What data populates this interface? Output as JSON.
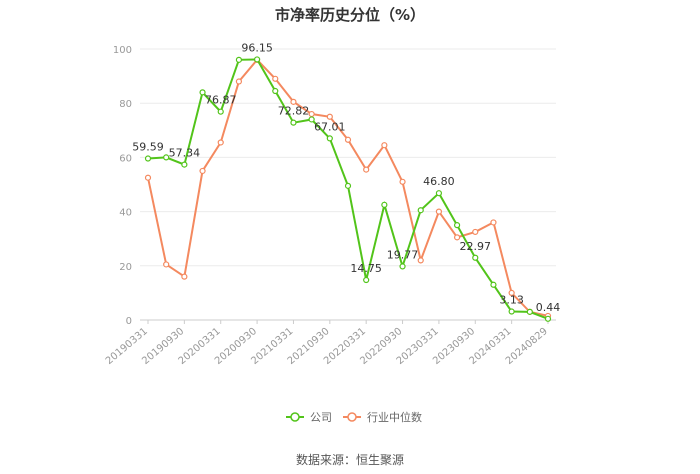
{
  "chart_data": {
    "type": "line",
    "title": "市净率历史分位（%）",
    "x": [
      "20190331",
      "20190630",
      "20190930",
      "20191231",
      "20200331",
      "20200630",
      "20200930",
      "20201231",
      "20210331",
      "20210630",
      "20210930",
      "20211231",
      "20220331",
      "20220630",
      "20220930",
      "20221231",
      "20230331",
      "20230630",
      "20230930",
      "20231231",
      "20240331",
      "20240630",
      "20240829"
    ],
    "x_tick_labels": [
      "20190331",
      "20190930",
      "20200331",
      "20200930",
      "20210331",
      "20210930",
      "20220331",
      "20220930",
      "20230331",
      "20230930",
      "20240331",
      "20240829"
    ],
    "y_ticks": [
      0,
      20,
      40,
      60,
      80,
      100
    ],
    "ylim": [
      0,
      100
    ],
    "grid": "horizontal",
    "series": [
      {
        "name": "公司",
        "color": "#52c41a",
        "values": [
          59.59,
          60.0,
          57.34,
          84.0,
          76.87,
          96.0,
          96.15,
          84.5,
          72.82,
          74.0,
          67.01,
          49.5,
          14.75,
          42.5,
          19.77,
          40.5,
          46.8,
          35.0,
          22.97,
          13.0,
          3.13,
          3.0,
          0.44
        ],
        "labels": {
          "0": "59.59",
          "2": "57.34",
          "4": "76.87",
          "6": "96.15",
          "8": "72.82",
          "10": "67.01",
          "12": "14.75",
          "14": "19.77",
          "16": "46.80",
          "18": "22.97",
          "20": "3.13",
          "22": "0.44"
        }
      },
      {
        "name": "行业中位数",
        "color": "#f4895f",
        "values": [
          52.5,
          20.5,
          16.0,
          55.0,
          65.5,
          88.0,
          96.0,
          89.0,
          80.5,
          76.0,
          75.0,
          66.5,
          55.5,
          64.5,
          51.0,
          22.0,
          40.0,
          30.5,
          32.5,
          36.0,
          10.0,
          3.0,
          1.5
        ]
      }
    ],
    "legend": {
      "position": "bottom-center"
    }
  },
  "footer": {
    "source": "数据来源：恒生聚源"
  }
}
